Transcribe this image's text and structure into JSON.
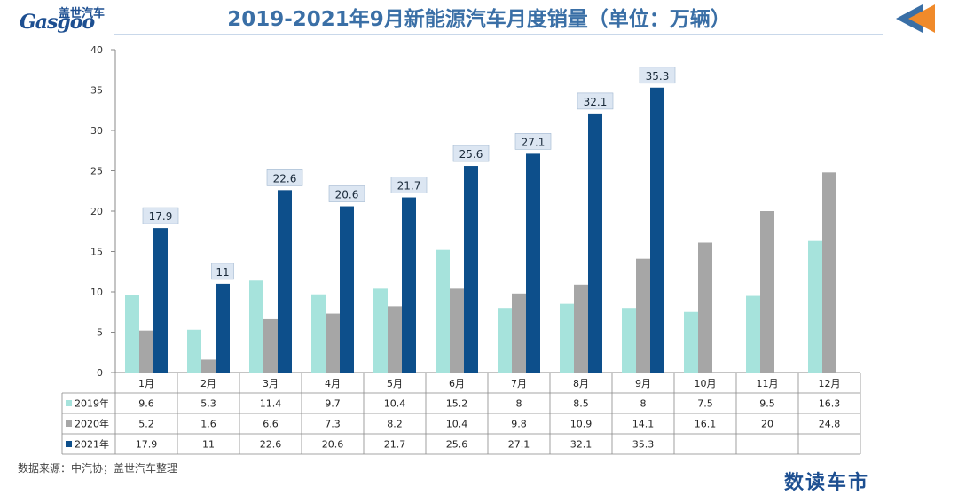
{
  "header": {
    "title": "2019-2021年9月新能源汽车月度销量（单位：万辆）",
    "logo_cn": "盖世汽车",
    "logo_en": "Gasgoo"
  },
  "footer": {
    "source": "数据来源：中汽协；盖世汽车整理",
    "corner_logo": "数读车市"
  },
  "chart_data": {
    "type": "bar",
    "title": "2019-2021年9月新能源汽车月度销量（单位：万辆）",
    "categories": [
      "1月",
      "2月",
      "3月",
      "4月",
      "5月",
      "6月",
      "7月",
      "8月",
      "9月",
      "10月",
      "11月",
      "12月"
    ],
    "series": [
      {
        "name": "2019年",
        "color": "#a6e3dc",
        "values": [
          9.6,
          5.3,
          11.4,
          9.7,
          10.4,
          15.2,
          8,
          8.5,
          8,
          7.5,
          9.5,
          16.3
        ]
      },
      {
        "name": "2020年",
        "color": "#a6a6a6",
        "values": [
          5.2,
          1.6,
          6.6,
          7.3,
          8.2,
          10.4,
          9.8,
          10.9,
          14.1,
          16.1,
          20,
          24.8
        ]
      },
      {
        "name": "2021年",
        "color": "#0d4f8b",
        "values": [
          17.9,
          11,
          22.6,
          20.6,
          21.7,
          25.6,
          27.1,
          32.1,
          35.3,
          null,
          null,
          null
        ]
      }
    ],
    "table_values": [
      [
        "9.6",
        "5.3",
        "11.4",
        "9.7",
        "10.4",
        "15.2",
        "8",
        "8.5",
        "8",
        "7.5",
        "9.5",
        "16.3"
      ],
      [
        "5.2",
        "1.6",
        "6.6",
        "7.3",
        "8.2",
        "10.4",
        "9.8",
        "10.9",
        "14.1",
        "16.1",
        "20",
        "24.8"
      ],
      [
        "17.9",
        "11",
        "22.6",
        "20.6",
        "21.7",
        "25.6",
        "27.1",
        "32.1",
        "35.3",
        "",
        "",
        ""
      ]
    ],
    "data_labels_series": "2021年",
    "ylim": [
      0,
      40
    ],
    "yticks": [
      0,
      5,
      10,
      15,
      20,
      25,
      30,
      35,
      40
    ],
    "grid": false,
    "legend": "data-table",
    "colors": {
      "label_bg": "#dce6f2",
      "label_border": "#9fb6cf",
      "axis": "#888888"
    }
  }
}
